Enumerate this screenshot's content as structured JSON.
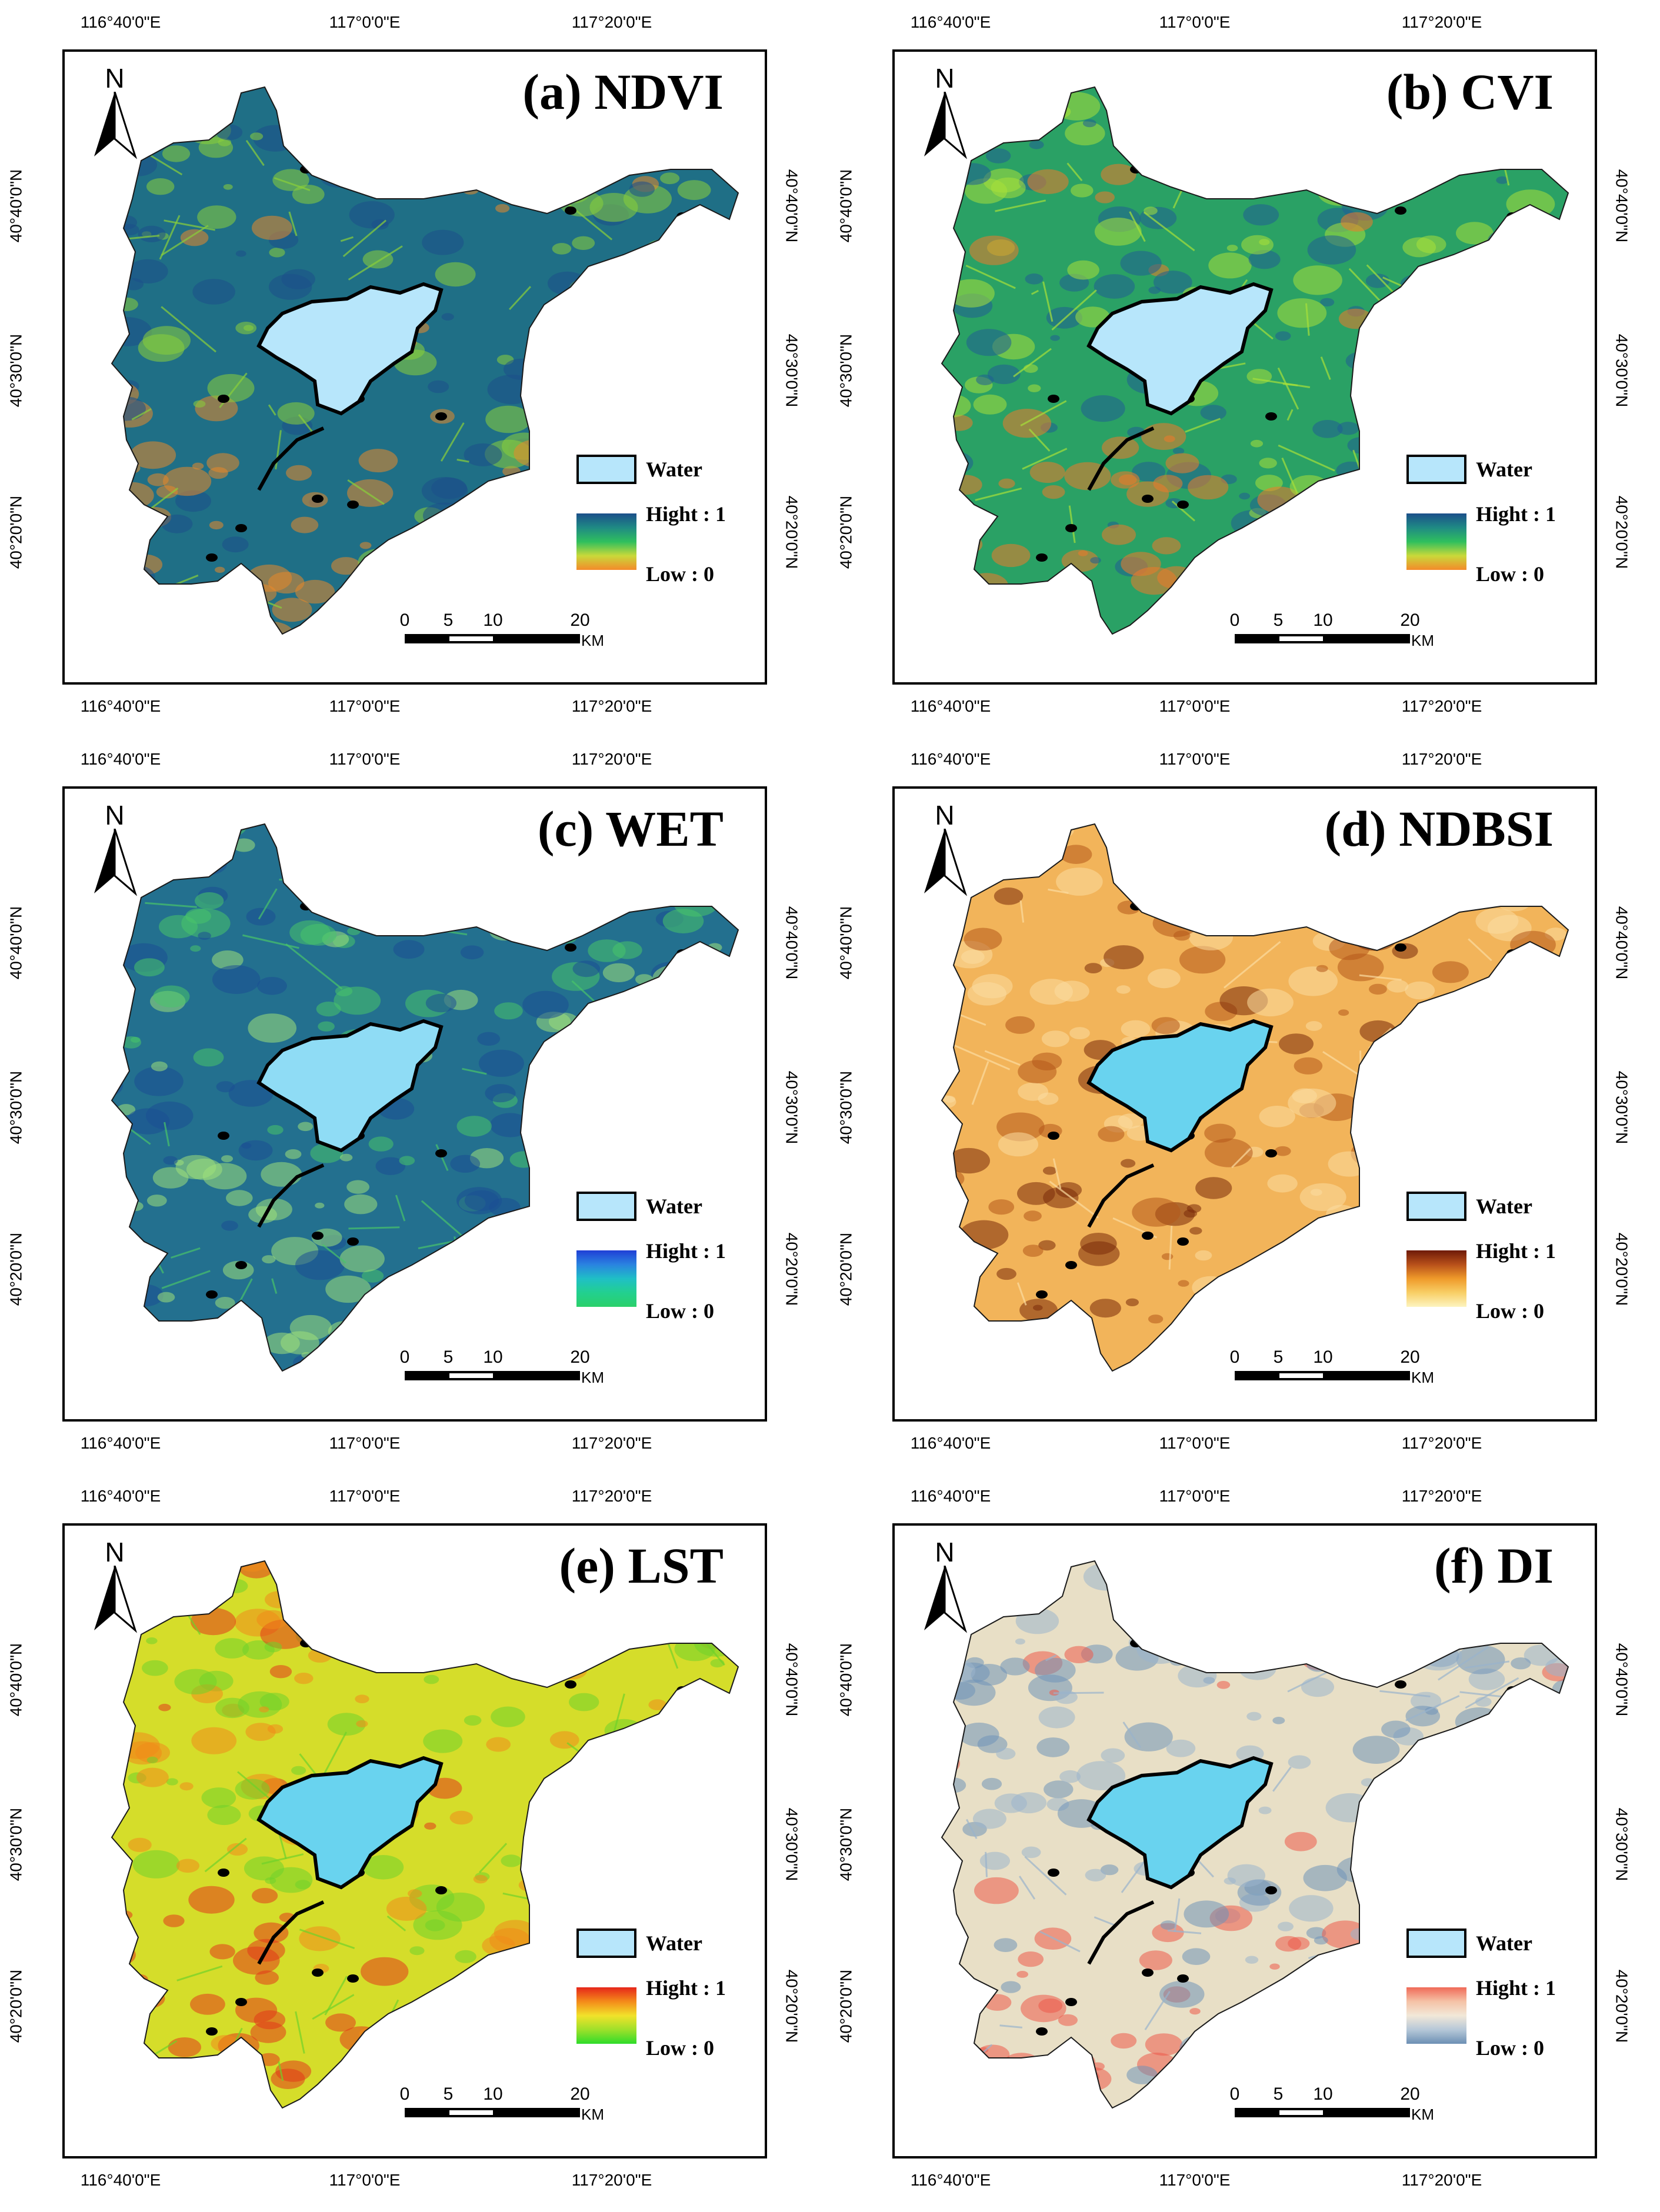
{
  "figure": {
    "lon_ticks": [
      "116°40'0\"E",
      "117°0'0\"E",
      "117°20'0\"E"
    ],
    "lat_ticks": [
      "40°40'0\"N",
      "40°30'0\"N",
      "40°20'0\"N"
    ],
    "north_label": "N",
    "water_label": "Water",
    "high_label": "Hight : 1",
    "low_label": "Low : 0",
    "scale_numbers": [
      "0",
      "5",
      "10",
      "20"
    ],
    "scale_unit": "KM",
    "water_color": "#b7e6fb"
  },
  "panels": [
    {
      "id": "ndvi",
      "title": "(a) NDVI",
      "base": "#1f6f86",
      "low_tone": "#8ad03a",
      "high_tone": "#1b4f8a",
      "hot": "#e8892a",
      "water": "#b7e6fb",
      "ramp": [
        "#1b4f8a",
        "#1f8a84",
        "#2fbf5e",
        "#c9d93a",
        "#f48a2a"
      ]
    },
    {
      "id": "cvi",
      "title": "(b) CVI",
      "base": "#2aa165",
      "low_tone": "#a7e03a",
      "high_tone": "#1f5f94",
      "hot": "#ef7a2a",
      "water": "#b7e6fb",
      "ramp": [
        "#1b4f8a",
        "#1f8a84",
        "#2fbf5e",
        "#c9d93a",
        "#f48a2a"
      ]
    },
    {
      "id": "wet",
      "title": "(c) WET",
      "base": "#23708f",
      "low_tone": "#49c46a",
      "high_tone": "#1b4f94",
      "hot": "#9ee07a",
      "water": "#8fdcf5",
      "ramp": [
        "#1f3fd6",
        "#2a83e0",
        "#1fbfc6",
        "#22d08f",
        "#2bd06a"
      ]
    },
    {
      "id": "ndbsi",
      "title": "(d) NDBSI",
      "base": "#f2b45a",
      "low_tone": "#fcdca0",
      "high_tone": "#b4581a",
      "hot": "#7a2a0a",
      "water": "#69d3ef",
      "ramp": [
        "#6e1a08",
        "#b8501a",
        "#ef9a2a",
        "#f8cf66",
        "#fdf4c0"
      ]
    },
    {
      "id": "lst",
      "title": "(e) LST",
      "base": "#d5dd2a",
      "low_tone": "#6fd22a",
      "high_tone": "#f08a1a",
      "hot": "#e2381a",
      "water": "#69d3ef",
      "ramp": [
        "#e6261a",
        "#f48a1a",
        "#f2e22a",
        "#9ee02a",
        "#2edc2a"
      ]
    },
    {
      "id": "di",
      "title": "(f) DI",
      "base": "#e8dfc6",
      "low_tone": "#9ab4cc",
      "high_tone": "#6f93b8",
      "hot": "#ec5a4a",
      "water": "#69d3ef",
      "ramp": [
        "#f06a58",
        "#f5c2a6",
        "#f2e8d8",
        "#b6c8d8",
        "#6c8fb4"
      ]
    }
  ]
}
